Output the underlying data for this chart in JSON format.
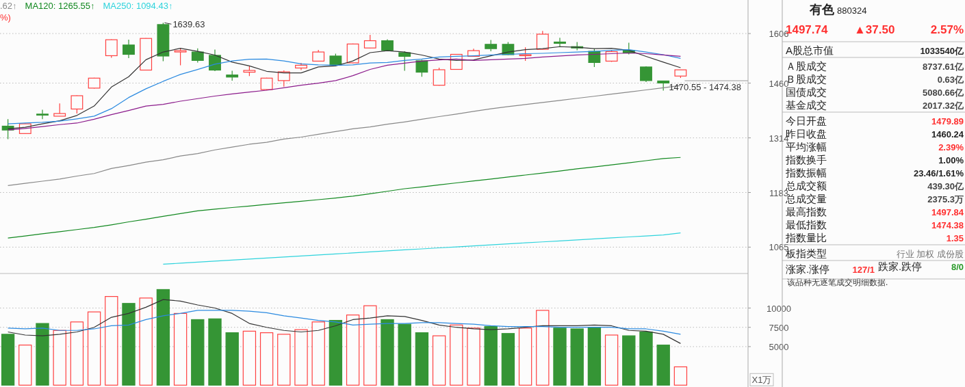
{
  "chart_data": [
    {
      "type": "candlestick",
      "categories": [
        null,
        null,
        null,
        null,
        null,
        null,
        null,
        null,
        null,
        null,
        null,
        null,
        null,
        null,
        null,
        null,
        null,
        null,
        null,
        null,
        null,
        null,
        null,
        null,
        null,
        null,
        null,
        null,
        null,
        null,
        null,
        null,
        null,
        null,
        null,
        null,
        null,
        null,
        null,
        null
      ],
      "log": true,
      "ylim": [
        1015,
        1713
      ],
      "yticks": [
        1065,
        1183,
        1314,
        1460,
        1606
      ],
      "grid": "y",
      "tick_labels": "y",
      "legend": "top left",
      "annotations": [
        "1639.63",
        "1470.55 - 1474.38",
        "%)"
      ],
      "series": [
        {
          "type": "candlestick",
          "ohlc": [
            [
              1344,
              1362,
              1311,
              1334
            ],
            [
              1325,
              1351,
              1324,
              1350
            ],
            [
              1375.5,
              1387,
              1362,
              1374.5
            ],
            [
              1370,
              1404,
              1370,
              1377
            ],
            [
              1389,
              1426,
              1377,
              1425
            ],
            [
              1446,
              1475,
              1445,
              1474
            ],
            [
              1539,
              1588,
              1533,
              1587
            ],
            [
              1571,
              1587,
              1532,
              1543
            ],
            [
              1497,
              1592,
              1496,
              1591
            ],
            [
              1634,
              1639.63,
              1523,
              1538
            ],
            [
              1550,
              1562,
              1511,
              1554
            ],
            [
              1550,
              1561,
              1519,
              1525
            ],
            [
              1540,
              1557,
              1494,
              1497
            ],
            [
              1483,
              1495,
              1467,
              1477
            ],
            [
              1491,
              1508,
              1480,
              1496
            ],
            [
              1442,
              1475,
              1440,
              1474
            ],
            [
              1467,
              1496,
              1450,
              1492
            ],
            [
              1503,
              1518,
              1497,
              1511
            ],
            [
              1523,
              1556,
              1523,
              1550
            ],
            [
              1538,
              1545,
              1510,
              1511
            ],
            [
              1518,
              1575,
              1517,
              1574
            ],
            [
              1562,
              1602,
              1561,
              1584
            ],
            [
              1584,
              1588,
              1552,
              1555
            ],
            [
              1548,
              1552,
              1495,
              1537
            ],
            [
              1524,
              1527,
              1478,
              1491
            ],
            [
              1454,
              1504,
              1453,
              1498
            ],
            [
              1499,
              1544,
              1498,
              1543
            ],
            [
              1537,
              1560,
              1536,
              1554
            ],
            [
              1573,
              1586,
              1552,
              1560
            ],
            [
              1573,
              1580,
              1541,
              1542
            ],
            [
              1539,
              1564,
              1524,
              1542
            ],
            [
              1558,
              1614,
              1557,
              1604
            ],
            [
              1580,
              1593,
              1566,
              1576
            ],
            [
              1566,
              1580,
              1555,
              1562
            ],
            [
              1552,
              1560,
              1506,
              1519
            ],
            [
              1523,
              1555,
              1521,
              1551
            ],
            [
              1555,
              1578,
              1543,
              1547
            ],
            [
              1506,
              1508,
              1463,
              1467
            ],
            [
              1466,
              1467,
              1439,
              1460.24
            ],
            [
              1479.89,
              1497.84,
              1474.38,
              1497.74
            ]
          ],
          "colors": [
            "#359535",
            "#ff4040",
            "#359535",
            "#ff4040",
            "#ff4040",
            "#ff4040",
            "#ff4040",
            "#359535",
            "#ff4040",
            "#359535",
            "#ff4040",
            "#359535",
            "#359535",
            "#359535",
            "#ff4040",
            "#ff4040",
            "#ff4040",
            "#ff4040",
            "#ff4040",
            "#359535",
            "#ff4040",
            "#ff4040",
            "#359535",
            "#359535",
            "#359535",
            "#ff4040",
            "#ff4040",
            "#ff4040",
            "#359535",
            "#359535",
            "#ff4040",
            "#ff4040",
            "#359535",
            "#359535",
            "#359535",
            "#ff4040",
            "#359535",
            "#359535",
            "#359535",
            "#ff4040"
          ]
        },
        {
          "type": "line",
          "color": "#333333",
          "values": [
            1337,
            1341,
            1350,
            1358,
            1372,
            1397,
            1449,
            1478,
            1527,
            1550,
            1561,
            1552,
            1541,
            1520,
            1509,
            1493.5,
            1489,
            1489,
            1506,
            1509,
            1523.5,
            1548,
            1554,
            1550,
            1541,
            1529,
            1525,
            1526.6,
            1538.5,
            1550,
            1557,
            1560,
            1566,
            1564,
            1560,
            1561,
            1555,
            1537,
            1520,
            1504
          ]
        },
        {
          "type": "line",
          "color": "#2b8ae0",
          "values": [
            1350,
            1352,
            1354,
            1357,
            1363,
            1370,
            1390,
            1420,
            1444,
            1465,
            1484.6,
            1498.7,
            1514,
            1523.5,
            1528.4,
            1529,
            1523.5,
            1515,
            1512,
            1511,
            1512,
            1517.5,
            1519,
            1525,
            1529,
            1535,
            1537,
            1538.5,
            1541,
            1543,
            1545,
            1546,
            1548,
            1550,
            1552,
            1555,
            1557,
            1550,
            1542,
            1531
          ]
        },
        {
          "type": "line",
          "color": "#8b1a8b",
          "values": [
            1334,
            1338,
            1343,
            1348,
            1352,
            1362,
            1374,
            1385,
            1397,
            1401.6,
            1410,
            1417,
            1424,
            1430,
            1435,
            1440,
            1447,
            1454,
            1460,
            1467,
            1481,
            1499,
            1511,
            1517,
            1523,
            1526.6,
            1529,
            1525,
            1527,
            1529,
            1531,
            1535,
            1538,
            1541,
            1543,
            1545,
            1547,
            1545,
            1541,
            1537
          ]
        },
        {
          "type": "line",
          "name": ".62↑",
          "color": "#888888",
          "values": [
            1199,
            1204,
            1209,
            1214,
            1221,
            1227,
            1239,
            1246,
            1254,
            1260,
            1269,
            1275,
            1284,
            1291,
            1298,
            1303,
            1311,
            1316,
            1323,
            1330,
            1337,
            1342,
            1349,
            1355,
            1362,
            1369,
            1375.6,
            1382.7,
            1389.5,
            1395.5,
            1401,
            1406.6,
            1412.3,
            1418,
            1423.6,
            1429.4,
            1435.2,
            1441,
            1447,
            1453
          ]
        },
        {
          "type": "line",
          "name": "MA120: 1265.55↑",
          "color": "#11881f",
          "values": [
            1083.8,
            1088,
            1092.6,
            1097,
            1101.6,
            1106,
            1111.7,
            1118,
            1123.8,
            1130,
            1136,
            1141.9,
            1145.7,
            1149.3,
            1152.6,
            1156.2,
            1159.7,
            1163.2,
            1166.8,
            1170.5,
            1174.8,
            1180,
            1185.8,
            1191.6,
            1195.8,
            1200.5,
            1205,
            1209.5,
            1214,
            1218.6,
            1223.4,
            1228,
            1233,
            1238,
            1242.7,
            1247.5,
            1252.6,
            1257.6,
            1262.7,
            1265.55
          ]
        },
        {
          "type": "line",
          "name": "MA250: 1094.43↑",
          "color": "#2ed3dc",
          "values": [
            null,
            null,
            null,
            null,
            null,
            null,
            null,
            null,
            null,
            1030.5,
            1032.6,
            1034.6,
            1036.7,
            1038.7,
            1040.8,
            1042.9,
            1044.9,
            1047.0,
            1049.0,
            1051.1,
            1053.2,
            1055.2,
            1057.3,
            1059.4,
            1061.4,
            1063.5,
            1065.5,
            1067.6,
            1069.7,
            1071.7,
            1073.8,
            1075.8,
            1077.9,
            1080.0,
            1082.0,
            1084.1,
            1086.1,
            1088.2,
            1090.3,
            1094.43
          ]
        }
      ]
    },
    {
      "type": "bar",
      "categories": [
        null,
        null,
        null,
        null,
        null,
        null,
        null,
        null,
        null,
        null,
        null,
        null,
        null,
        null,
        null,
        null,
        null,
        null,
        null,
        null,
        null,
        null,
        null,
        null,
        null,
        null,
        null,
        null,
        null,
        null,
        null,
        null,
        null,
        null,
        null,
        null,
        null,
        null,
        null,
        null
      ],
      "ylim": [
        0,
        14480
      ],
      "yticks": [
        5000,
        7500,
        10000
      ],
      "grid": "y",
      "tick_labels": "y",
      "ylabel": "X1万",
      "series": [
        {
          "type": "bar",
          "values": [
            6600,
            5200,
            8000,
            7100,
            8200,
            9500,
            11500,
            10600,
            11300,
            12400,
            9300,
            8500,
            8600,
            6800,
            7000,
            6800,
            6600,
            7200,
            8200,
            8400,
            9100,
            10300,
            8500,
            7900,
            6800,
            6400,
            7800,
            7400,
            7600,
            6700,
            7400,
            9700,
            7400,
            7300,
            7500,
            6500,
            6400,
            6900,
            5200,
            2375.3
          ],
          "colors": [
            "#359535",
            "#ff4040",
            "#359535",
            "#ff4040",
            "#ff4040",
            "#ff4040",
            "#ff4040",
            "#359535",
            "#ff4040",
            "#359535",
            "#ff4040",
            "#359535",
            "#359535",
            "#359535",
            "#ff4040",
            "#ff4040",
            "#ff4040",
            "#ff4040",
            "#ff4040",
            "#359535",
            "#ff4040",
            "#ff4040",
            "#359535",
            "#359535",
            "#359535",
            "#ff4040",
            "#ff4040",
            "#ff4040",
            "#359535",
            "#359535",
            "#ff4040",
            "#ff4040",
            "#359535",
            "#359535",
            "#359535",
            "#ff4040",
            "#359535",
            "#359535",
            "#359535",
            "#ff4040"
          ]
        },
        {
          "type": "line",
          "color": "#333333",
          "values": [
            6900,
            6500,
            6400,
            6600,
            6900,
            7500,
            8800,
            9300,
            10100,
            11100,
            10900,
            10400,
            10000,
            9300,
            8000,
            7500,
            7100,
            6900,
            7100,
            7700,
            8500,
            8700,
            9000,
            8900,
            8400,
            7800,
            7500,
            7300,
            7200,
            7300,
            7500,
            7700,
            7700,
            7700,
            7800,
            7700,
            7100,
            7000,
            6600,
            5400
          ]
        },
        {
          "type": "line",
          "color": "#2b8ae0",
          "values": [
            7400,
            7300,
            7400,
            7100,
            7100,
            7300,
            7700,
            7800,
            8500,
            9000,
            9300,
            9700,
            9700,
            9700,
            9600,
            9400,
            9000,
            8700,
            8400,
            8200,
            7800,
            7900,
            8000,
            8000,
            8100,
            8100,
            8000,
            7900,
            7700,
            7600,
            7600,
            7600,
            7500,
            7500,
            7500,
            7500,
            7300,
            7300,
            7000,
            6600
          ]
        }
      ]
    },
    {
      "type": "other",
      "title": "有色",
      "subtitle": "880324",
      "annotations": [
        "1497.74",
        "▲37.50",
        "2.57%",
        "该品种无逐笔成交明细数据."
      ],
      "categories": [
        "A股总市值",
        "Ａ股成交",
        "Ｂ股成交",
        "国债成交",
        "基金成交",
        "今日开盘",
        "昨日收盘",
        "平均涨幅",
        "指数换手",
        "指数振幅",
        "总成交额",
        "总成交量",
        "最高指数",
        "最低指数",
        "指数量比",
        "板指类型",
        "涨家.涨停",
        "跌家.跌停"
      ],
      "value_labels": [
        "1033540亿",
        "8737.61亿",
        "0.63亿",
        "5080.66亿",
        "2017.32亿",
        "1479.89",
        "1460.24",
        "2.39%",
        "1.00%",
        "23.46/1.61%",
        "439.30亿",
        "2375.3万",
        "1497.84",
        "1474.38",
        "1.35",
        "行业 加权 成份股",
        "127/1",
        "8/0"
      ],
      "colors": [
        "#222222",
        "#444444",
        "#444444",
        "#444444",
        "#444444",
        "#ff3030",
        "#222222",
        "#ff3030",
        "#222222",
        "#222222",
        "#444444",
        "#444444",
        "#ff3030",
        "#ff3030",
        "#ff3030",
        "#777777",
        "#ff3030",
        "#2a9a2a"
      ]
    }
  ]
}
